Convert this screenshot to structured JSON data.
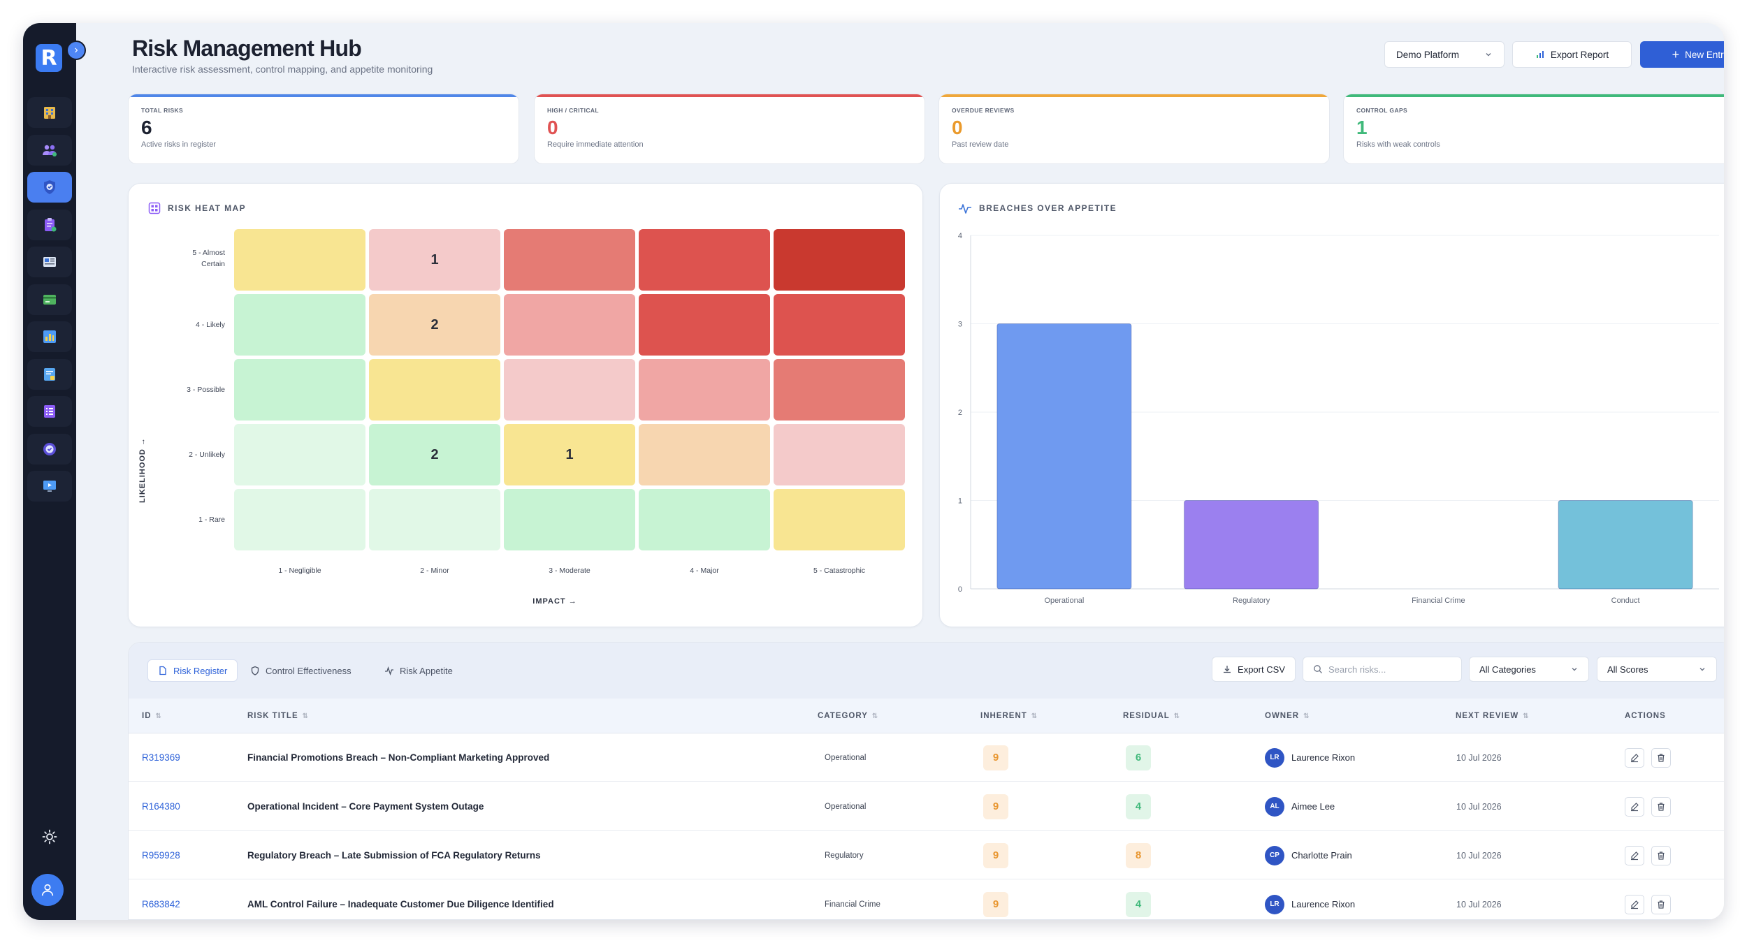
{
  "app": {
    "logo_letter": "R",
    "title": "Risk Management Hub",
    "subtitle": "Interactive risk assessment, control mapping, and appetite monitoring"
  },
  "sidebar": {
    "items": [
      {
        "icon": "building-icon",
        "active": false
      },
      {
        "icon": "users-icon",
        "active": false
      },
      {
        "icon": "shield-check-icon",
        "active": true
      },
      {
        "icon": "clipboard-icon",
        "active": false
      },
      {
        "icon": "newspaper-icon",
        "active": false
      },
      {
        "icon": "card-icon",
        "active": false
      },
      {
        "icon": "chart-icon",
        "active": false
      },
      {
        "icon": "document-chart-icon",
        "active": false
      },
      {
        "icon": "list-icon",
        "active": false
      },
      {
        "icon": "target-icon",
        "active": false
      },
      {
        "icon": "monitor-icon",
        "active": false
      }
    ],
    "theme_icon": "sun-icon",
    "user_icon": "user-icon"
  },
  "header": {
    "platform_select": "Demo Platform",
    "export_label": "Export Report",
    "new_label": "New Entry"
  },
  "kpis": [
    {
      "label": "TOTAL RISKS",
      "value": "6",
      "desc": "Active risks in register",
      "color": "#4f86e8",
      "value_color": "#1c2130"
    },
    {
      "label": "HIGH / CRITICAL",
      "value": "0",
      "desc": "Require immediate attention",
      "color": "#e05252",
      "value_color": "#e05252"
    },
    {
      "label": "OVERDUE REVIEWS",
      "value": "0",
      "desc": "Past review date",
      "color": "#efa73a",
      "value_color": "#ea9a2c"
    },
    {
      "label": "CONTROL GAPS",
      "value": "1",
      "desc": "Risks with weak controls",
      "color": "#3fb97a",
      "value_color": "#3fb97a"
    }
  ],
  "heatmap": {
    "title": "RISK HEAT MAP",
    "y_axis_title": "LIKELIHOOD →",
    "x_axis_title": "IMPACT →",
    "likelihood_labels": [
      "5 - Almost Certain",
      "4 - Likely",
      "3 - Possible",
      "2 - Unlikely",
      "1 - Rare"
    ],
    "impact_labels": [
      "1 - Negligible",
      "2 - Minor",
      "3 - Moderate",
      "4 - Major",
      "5 - Catastrophic"
    ],
    "rows": [
      {
        "colors": [
          "#f8e592",
          "#f4caca",
          "#e57b74",
          "#dd534f",
          "#c9392f"
        ],
        "counts": [
          "",
          "1",
          "",
          "",
          ""
        ]
      },
      {
        "colors": [
          "#c7f3d3",
          "#f7d6b0",
          "#f0a6a4",
          "#dd534f",
          "#dd534f"
        ],
        "counts": [
          "",
          "2",
          "",
          "",
          ""
        ]
      },
      {
        "colors": [
          "#c7f3d3",
          "#f8e592",
          "#f4caca",
          "#f0a6a4",
          "#e57b74"
        ],
        "counts": [
          "",
          "",
          "",
          "",
          ""
        ]
      },
      {
        "colors": [
          "#e1f8e7",
          "#c7f3d3",
          "#f8e592",
          "#f7d6b0",
          "#f4caca"
        ],
        "counts": [
          "",
          "2",
          "1",
          "",
          ""
        ]
      },
      {
        "colors": [
          "#e1f8e7",
          "#e1f8e7",
          "#c7f3d3",
          "#c7f3d3",
          "#f8e592"
        ],
        "counts": [
          "",
          "",
          "",
          "",
          ""
        ]
      }
    ]
  },
  "chart_data": {
    "type": "bar",
    "title": "BREACHES OVER APPETITE",
    "categories": [
      "Operational",
      "Regulatory",
      "Financial Crime",
      "Conduct"
    ],
    "values": [
      3,
      1,
      0,
      1
    ],
    "colors": [
      "#6f9af0",
      "#9b80ef",
      "#6f9af0",
      "#74c1da"
    ],
    "ylim": [
      0,
      4
    ],
    "yticks": [
      "0",
      "1",
      "2",
      "3",
      "4"
    ],
    "grid": true,
    "legend": "none"
  },
  "register": {
    "tabs": [
      "Risk Register",
      "Control Effectiveness",
      "Risk Appetite"
    ],
    "export_csv": "Export CSV",
    "search_placeholder": "Search risks...",
    "category_filter": "All Categories",
    "score_filter": "All Scores",
    "columns": [
      "ID",
      "RISK TITLE",
      "CATEGORY",
      "INHERENT",
      "RESIDUAL",
      "OWNER",
      "NEXT REVIEW",
      "ACTIONS"
    ],
    "rows": [
      {
        "id": "R319369",
        "title": "Financial Promotions Breach – Non-Compliant Marketing Approved",
        "category": "Operational",
        "inherent": "9",
        "residual": "6",
        "residual_style": "green",
        "initials": "LR",
        "owner": "Laurence Rixon",
        "review": "10 Jul 2026"
      },
      {
        "id": "R164380",
        "title": "Operational Incident – Core Payment System Outage",
        "category": "Operational",
        "inherent": "9",
        "residual": "4",
        "residual_style": "green",
        "initials": "AL",
        "owner": "Aimee Lee",
        "review": "10 Jul 2026"
      },
      {
        "id": "R959928",
        "title": "Regulatory Breach – Late Submission of FCA Regulatory Returns",
        "category": "Regulatory",
        "inherent": "9",
        "residual": "8",
        "residual_style": "orange",
        "initials": "CP",
        "owner": "Charlotte Prain",
        "review": "10 Jul 2026"
      },
      {
        "id": "R683842",
        "title": "AML Control Failure – Inadequate Customer Due Diligence Identified",
        "category": "Financial Crime",
        "inherent": "9",
        "residual": "4",
        "residual_style": "green",
        "initials": "LR",
        "owner": "Laurence Rixon",
        "review": "10 Jul 2026"
      }
    ]
  }
}
